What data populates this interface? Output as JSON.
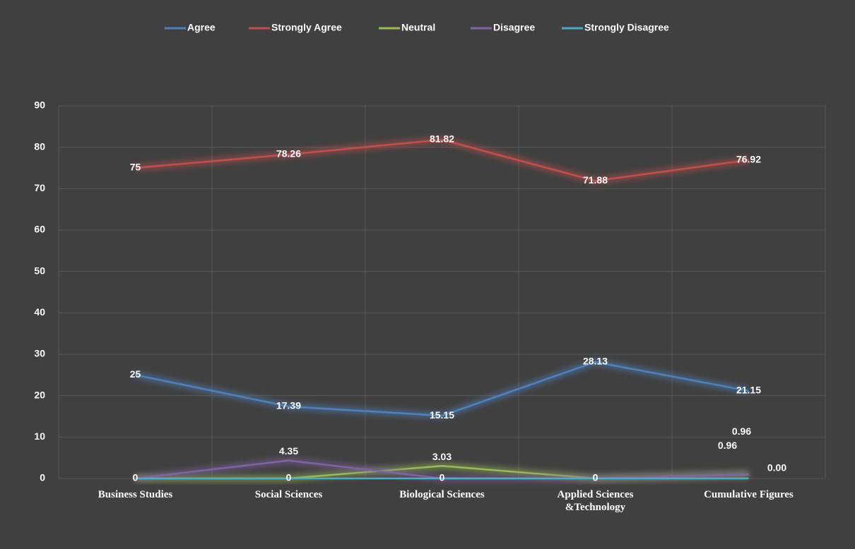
{
  "chart_data": {
    "type": "line",
    "categories": [
      "Business Studies",
      "Social Sciences",
      "Biological Sciences",
      "Applied Sciences &Technology",
      "Cumulative Figures"
    ],
    "ylim": [
      0,
      90
    ],
    "yticks": [
      0,
      10,
      20,
      30,
      40,
      50,
      60,
      70,
      80,
      90
    ],
    "grid": true,
    "legend": "top",
    "series": [
      {
        "name": "Agree",
        "color": "#4f81bd",
        "values": [
          25,
          17.39,
          15.15,
          28.13,
          21.15
        ],
        "value_labels": [
          "25",
          "17.39",
          "15.15",
          "28.13",
          "21.15"
        ]
      },
      {
        "name": "Strongly Agree",
        "color": "#c0504d",
        "values": [
          75,
          78.26,
          81.82,
          71.88,
          76.92
        ],
        "value_labels": [
          "75",
          "78.26",
          "81.82",
          "71.88",
          "76.92"
        ]
      },
      {
        "name": "Neutral",
        "color": "#9bbb59",
        "values": [
          0,
          0,
          3.03,
          0,
          0.96
        ],
        "value_labels": [
          null,
          null,
          "3.03",
          null,
          "0.96"
        ]
      },
      {
        "name": "Disagree",
        "color": "#8064a2",
        "values": [
          0,
          4.35,
          0,
          0,
          0.96
        ],
        "value_labels": [
          null,
          "4.35",
          null,
          null,
          "0.96"
        ]
      },
      {
        "name": "Strongly Disagree",
        "color": "#4bacc6",
        "values": [
          0,
          0,
          0,
          0,
          0
        ],
        "value_labels": [
          "0",
          "0",
          "0",
          "0",
          "0.00"
        ]
      }
    ]
  }
}
